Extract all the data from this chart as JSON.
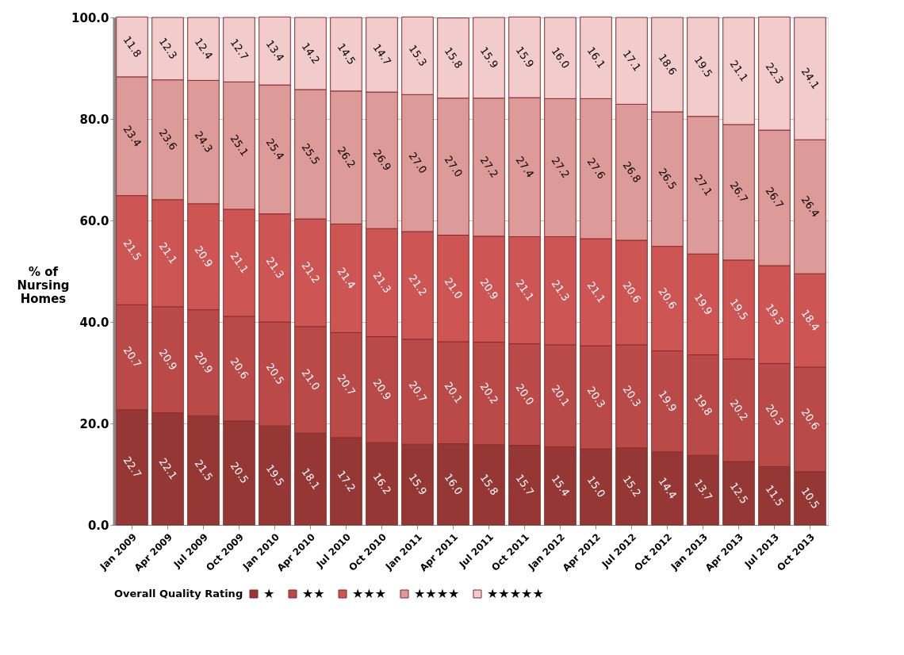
{
  "chart_data": {
    "type": "bar",
    "stacked": true,
    "ylabel": "% of Nursing Homes",
    "legend_title": "Overall Quality Rating",
    "legend": "bottom",
    "grid": "y",
    "categories": [
      "Jan 2009",
      "Apr 2009",
      "Jul 2009",
      "Oct 2009",
      "Jan 2010",
      "Apr 2010",
      "Jul 2010",
      "Oct 2010",
      "Jan 2011",
      "Apr 2011",
      "Jul 2011",
      "Oct 2011",
      "Jan 2012",
      "Apr 2012",
      "Jul 2012",
      "Oct 2012",
      "Jan 2013",
      "Apr 2013",
      "Jul 2013",
      "Oct 2013"
    ],
    "ylim": [
      0,
      100
    ],
    "yticks": [
      {
        "value": 0,
        "label": "0.0"
      },
      {
        "value": 20,
        "label": "20.0"
      },
      {
        "value": 40,
        "label": "40.0"
      },
      {
        "value": 60,
        "label": "60.0"
      },
      {
        "value": 80,
        "label": "80.0"
      },
      {
        "value": 100,
        "label": "100.0"
      }
    ],
    "series": [
      {
        "name": "★",
        "color": "#953735",
        "values": [
          22.7,
          22.1,
          21.5,
          20.5,
          19.5,
          18.1,
          17.2,
          16.2,
          15.9,
          16.0,
          15.8,
          15.7,
          15.4,
          15.0,
          15.2,
          14.4,
          13.7,
          12.5,
          11.5,
          10.5
        ],
        "value_labels": [
          "22.7",
          "22.1",
          "21.5",
          "20.5",
          "19.5",
          "18.1",
          "17.2",
          "16.2",
          "15.9",
          "16.0",
          "15.8",
          "15.7",
          "15.4",
          "15.0",
          "15.2",
          "14.4",
          "13.7",
          "12.5",
          "11.5",
          "10.5"
        ]
      },
      {
        "name": "★★",
        "color": "#b94a48",
        "values": [
          20.7,
          20.9,
          20.9,
          20.6,
          20.5,
          21.0,
          20.7,
          20.9,
          20.7,
          20.1,
          20.2,
          20.0,
          20.1,
          20.3,
          20.3,
          19.9,
          19.8,
          20.2,
          20.3,
          20.6
        ],
        "value_labels": [
          "20.7",
          "20.9",
          "20.9",
          "20.6",
          "20.5",
          "21.0",
          "20.7",
          "20.9",
          "20.7",
          "20.1",
          "20.2",
          "20.0",
          "20.1",
          "20.3",
          "20.3",
          "19.9",
          "19.8",
          "20.2",
          "20.3",
          "20.6"
        ]
      },
      {
        "name": "★★★",
        "color": "#cd5654",
        "values": [
          21.5,
          21.1,
          20.9,
          21.1,
          21.3,
          21.2,
          21.4,
          21.3,
          21.2,
          21.0,
          20.9,
          21.1,
          21.3,
          21.1,
          20.6,
          20.6,
          19.9,
          19.5,
          19.3,
          18.4
        ],
        "value_labels": [
          "21.5",
          "21.1",
          "20.9",
          "21.1",
          "21.3",
          "21.2",
          "21.4",
          "21.3",
          "21.2",
          "21.0",
          "20.9",
          "21.1",
          "21.3",
          "21.1",
          "20.6",
          "20.6",
          "19.9",
          "19.5",
          "19.3",
          "18.4"
        ]
      },
      {
        "name": "★★★★",
        "color": "#dc9a98",
        "values": [
          23.4,
          23.6,
          24.3,
          25.1,
          25.4,
          25.5,
          26.2,
          26.9,
          27.0,
          27.0,
          27.2,
          27.4,
          27.2,
          27.6,
          26.8,
          26.5,
          27.1,
          26.7,
          26.7,
          26.4
        ],
        "value_labels": [
          "23.4",
          "23.6",
          "24.3",
          "25.1",
          "25.4",
          "25.5",
          "26.2",
          "26.9",
          "27.0",
          "27.0",
          "27.2",
          "27.4",
          "27.2",
          "27.6",
          "26.8",
          "26.5",
          "27.1",
          "26.7",
          "26.7",
          "26.4"
        ]
      },
      {
        "name": "★★★★★",
        "color": "#f2cccc",
        "values": [
          11.8,
          12.3,
          12.4,
          12.7,
          13.4,
          14.2,
          14.5,
          14.7,
          15.3,
          15.8,
          15.9,
          15.9,
          16.0,
          16.1,
          17.1,
          18.6,
          19.5,
          21.1,
          22.3,
          24.1
        ],
        "value_labels": [
          "11.8",
          "12.3",
          "12.4",
          "12.7",
          "13.4",
          "14.2",
          "14.5",
          "14.7",
          "15.3",
          "15.8",
          "15.9",
          "15.9",
          "16.0",
          "16.1",
          "17.1",
          "18.6",
          "19.5",
          "21.1",
          "22.3",
          "24.1"
        ]
      }
    ]
  }
}
